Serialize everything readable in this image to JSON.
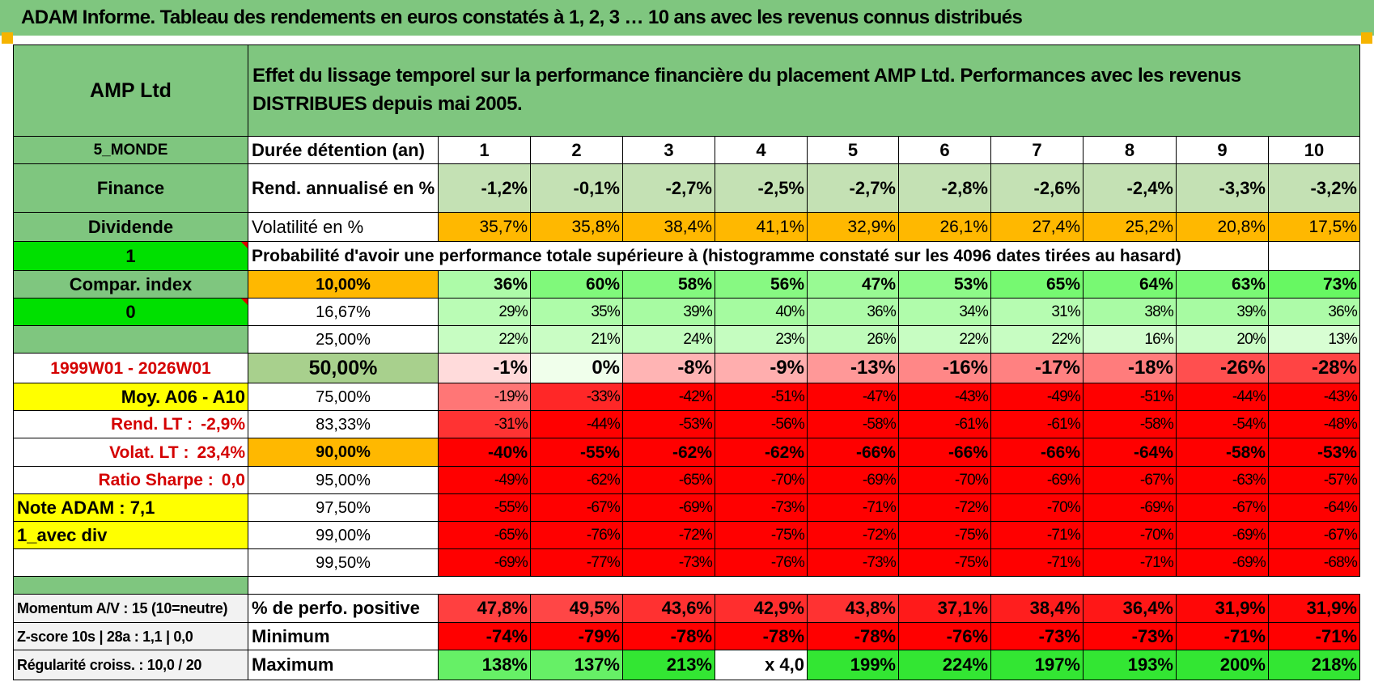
{
  "title": "ADAM Informe. Tableau des rendements en euros constatés à 1, 2, 3 … 10 ans avec les revenus connus distribués",
  "header": {
    "fund": "AMP Ltd",
    "description": "Effet du lissage temporel sur la performance financière du placement AMP Ltd. Performances avec les revenus DISTRIBUES depuis mai 2005."
  },
  "left": {
    "category": "5_MONDE",
    "sector": "Finance",
    "type": "Dividende",
    "flag1": "1",
    "compar_label": "Compar. index",
    "flag0": "0",
    "period": "1999W01 - 2026W01",
    "moy": "Moy. A06 - A10",
    "rend_lt_label": "Rend. LT :",
    "rend_lt_value": "-2,9%",
    "volat_lt_label": "Volat. LT :",
    "volat_lt_value": "23,4%",
    "sharpe_label": "Ratio Sharpe :",
    "sharpe_value": "0,0",
    "note": "Note ADAM : 7,1",
    "div": "1_avec div",
    "momentum": "Momentum A/V : 15 (10=neutre)",
    "zscore": "Z-score 10s | 28a : 1,1 | 0,0",
    "regularite": "Régularité croiss. : 10,0 / 20"
  },
  "stats": {
    "duree_label": "Durée détention (an)",
    "years": [
      "1",
      "2",
      "3",
      "4",
      "5",
      "6",
      "7",
      "8",
      "9",
      "10"
    ],
    "rend_label": "Rend. annualisé en %",
    "rend": [
      "-1,2%",
      "-0,1%",
      "-2,7%",
      "-2,5%",
      "-2,7%",
      "-2,8%",
      "-2,6%",
      "-2,4%",
      "-3,3%",
      "-3,2%"
    ],
    "vol_label": "Volatilité en %",
    "vol": [
      "35,7%",
      "35,8%",
      "38,4%",
      "41,1%",
      "32,9%",
      "26,1%",
      "27,4%",
      "25,2%",
      "20,8%",
      "17,5%"
    ]
  },
  "prob_header": "Probabilité d'avoir une performance totale supérieure à (histogramme constaté sur les 4096 dates tirées au hasard)",
  "distribution": [
    {
      "level": "10,00%",
      "values": [
        "36%",
        "60%",
        "58%",
        "56%",
        "47%",
        "53%",
        "65%",
        "64%",
        "63%",
        "73%"
      ]
    },
    {
      "level": "16,67%",
      "values": [
        "29%",
        "35%",
        "39%",
        "40%",
        "36%",
        "34%",
        "31%",
        "38%",
        "39%",
        "36%"
      ]
    },
    {
      "level": "25,00%",
      "values": [
        "22%",
        "21%",
        "24%",
        "23%",
        "26%",
        "22%",
        "22%",
        "16%",
        "20%",
        "13%"
      ]
    },
    {
      "level": "50,00%",
      "values": [
        "-1%",
        "0%",
        "-8%",
        "-9%",
        "-13%",
        "-16%",
        "-17%",
        "-18%",
        "-26%",
        "-28%"
      ]
    },
    {
      "level": "75,00%",
      "values": [
        "-19%",
        "-33%",
        "-42%",
        "-51%",
        "-47%",
        "-43%",
        "-49%",
        "-51%",
        "-44%",
        "-43%"
      ]
    },
    {
      "level": "83,33%",
      "values": [
        "-31%",
        "-44%",
        "-53%",
        "-56%",
        "-58%",
        "-61%",
        "-61%",
        "-58%",
        "-54%",
        "-48%"
      ]
    },
    {
      "level": "90,00%",
      "values": [
        "-40%",
        "-55%",
        "-62%",
        "-62%",
        "-66%",
        "-66%",
        "-66%",
        "-64%",
        "-58%",
        "-53%"
      ]
    },
    {
      "level": "95,00%",
      "values": [
        "-49%",
        "-62%",
        "-65%",
        "-70%",
        "-69%",
        "-70%",
        "-69%",
        "-67%",
        "-63%",
        "-57%"
      ]
    },
    {
      "level": "97,50%",
      "values": [
        "-55%",
        "-67%",
        "-69%",
        "-73%",
        "-71%",
        "-72%",
        "-70%",
        "-69%",
        "-67%",
        "-64%"
      ]
    },
    {
      "level": "99,00%",
      "values": [
        "-65%",
        "-76%",
        "-72%",
        "-75%",
        "-72%",
        "-75%",
        "-71%",
        "-70%",
        "-69%",
        "-67%"
      ]
    },
    {
      "level": "99,50%",
      "values": [
        "-69%",
        "-77%",
        "-73%",
        "-76%",
        "-73%",
        "-75%",
        "-71%",
        "-71%",
        "-69%",
        "-68%"
      ]
    }
  ],
  "bottom": [
    {
      "label": "% de perfo. positive",
      "values": [
        "47,8%",
        "49,5%",
        "43,6%",
        "42,9%",
        "43,8%",
        "37,1%",
        "38,4%",
        "36,4%",
        "31,9%",
        "31,9%"
      ]
    },
    {
      "label": "Minimum",
      "values": [
        "-74%",
        "-79%",
        "-78%",
        "-78%",
        "-78%",
        "-76%",
        "-73%",
        "-73%",
        "-71%",
        "-71%"
      ]
    },
    {
      "label": "Maximum",
      "values": [
        "138%",
        "137%",
        "213%",
        "x 4,0",
        "199%",
        "224%",
        "197%",
        "193%",
        "200%",
        "218%"
      ]
    }
  ],
  "colors": {
    "header_green": "#7fc67f",
    "bright_green": "#00e000",
    "yellow": "#ffff00",
    "orange": "#ffb800",
    "sage": "#a8d08d",
    "red": "#ff0000"
  }
}
